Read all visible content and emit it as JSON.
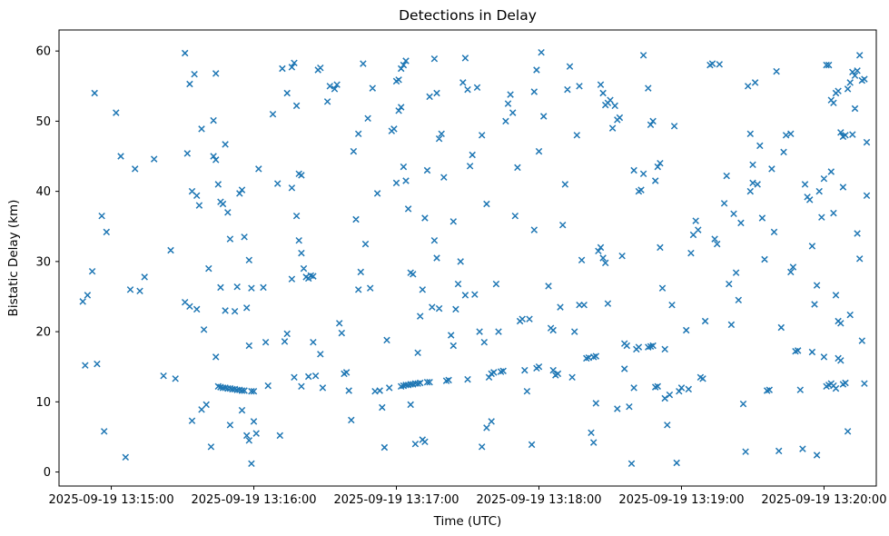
{
  "chart_data": {
    "type": "scatter",
    "title": "Detections in Delay",
    "xlabel": "Time (UTC)",
    "ylabel": "Bistatic Delay (km)",
    "marker": "x",
    "marker_color": "#1f77b4",
    "grid": false,
    "legend": "none",
    "x_encoding": "seconds relative to 2025-09-19 13:15:00 UTC",
    "xlim": [
      -22,
      322
    ],
    "ylim": [
      -2,
      63
    ],
    "x_tick_values": [
      0,
      60,
      120,
      180,
      240,
      300
    ],
    "x_tick_labels": [
      "2025-09-19 13:15:00",
      "2025-09-19 13:16:00",
      "2025-09-19 13:17:00",
      "2025-09-19 13:18:00",
      "2025-09-19 13:19:00",
      "2025-09-19 13:20:00"
    ],
    "y_tick_values": [
      0,
      10,
      20,
      30,
      40,
      50,
      60
    ],
    "y_tick_labels": [
      "0",
      "10",
      "20",
      "30",
      "40",
      "50",
      "60"
    ],
    "points": [
      [
        -12,
        24.3
      ],
      [
        -10,
        25.2
      ],
      [
        -8,
        28.6
      ],
      [
        -11,
        15.2
      ],
      [
        -6,
        15.4
      ],
      [
        -7,
        54.0
      ],
      [
        -4,
        36.5
      ],
      [
        -2,
        34.2
      ],
      [
        -3,
        5.8
      ],
      [
        2,
        51.2
      ],
      [
        4,
        45.0
      ],
      [
        6,
        2.1
      ],
      [
        8,
        26.0
      ],
      [
        12,
        25.8
      ],
      [
        14,
        27.8
      ],
      [
        10,
        43.2
      ],
      [
        18,
        44.6
      ],
      [
        22,
        13.7
      ],
      [
        27,
        13.3
      ],
      [
        25,
        31.6
      ],
      [
        31,
        59.7
      ],
      [
        33,
        55.3
      ],
      [
        35,
        56.7
      ],
      [
        32,
        45.4
      ],
      [
        34,
        40.0
      ],
      [
        36,
        39.4
      ],
      [
        37,
        38.0
      ],
      [
        38,
        48.9
      ],
      [
        31,
        24.2
      ],
      [
        33,
        23.6
      ],
      [
        36,
        23.2
      ],
      [
        39,
        20.3
      ],
      [
        34,
        7.3
      ],
      [
        38,
        8.9
      ],
      [
        40,
        9.6
      ],
      [
        42,
        3.6
      ],
      [
        41,
        29.0
      ],
      [
        43,
        50.1
      ],
      [
        44,
        56.8
      ],
      [
        43,
        45.0
      ],
      [
        44,
        44.5
      ],
      [
        45,
        41.0
      ],
      [
        46,
        38.5
      ],
      [
        47,
        38.2
      ],
      [
        48,
        46.7
      ],
      [
        49,
        37.0
      ],
      [
        50,
        33.2
      ],
      [
        46,
        26.3
      ],
      [
        48,
        23.0
      ],
      [
        44,
        16.4
      ],
      [
        45,
        12.2
      ],
      [
        46,
        12.1
      ],
      [
        47,
        12.0
      ],
      [
        48,
        12.0
      ],
      [
        49,
        11.9
      ],
      [
        50,
        11.9
      ],
      [
        51,
        11.8
      ],
      [
        52,
        11.8
      ],
      [
        53,
        11.7
      ],
      [
        54,
        11.7
      ],
      [
        55,
        11.6
      ],
      [
        56,
        11.6
      ],
      [
        50,
        6.7
      ],
      [
        52,
        22.9
      ],
      [
        53,
        26.4
      ],
      [
        54,
        39.7
      ],
      [
        55,
        40.2
      ],
      [
        56,
        33.5
      ],
      [
        57,
        23.4
      ],
      [
        58,
        18.0
      ],
      [
        55,
        8.8
      ],
      [
        57,
        5.2
      ],
      [
        58,
        4.5
      ],
      [
        59,
        1.2
      ],
      [
        59,
        11.5
      ],
      [
        60,
        11.5
      ],
      [
        58,
        30.2
      ],
      [
        59,
        26.2
      ],
      [
        60,
        7.2
      ],
      [
        61,
        5.5
      ],
      [
        62,
        43.2
      ],
      [
        64,
        26.3
      ],
      [
        65,
        18.5
      ],
      [
        68,
        51.0
      ],
      [
        70,
        41.1
      ],
      [
        72,
        57.5
      ],
      [
        74,
        54.0
      ],
      [
        66,
        12.3
      ],
      [
        73,
        18.6
      ],
      [
        74,
        19.7
      ],
      [
        71,
        5.2
      ],
      [
        76,
        57.7
      ],
      [
        77,
        58.3
      ],
      [
        78,
        52.2
      ],
      [
        79,
        42.5
      ],
      [
        80,
        42.3
      ],
      [
        76,
        40.5
      ],
      [
        78,
        36.5
      ],
      [
        79,
        33.0
      ],
      [
        80,
        31.2
      ],
      [
        81,
        29.0
      ],
      [
        82,
        27.8
      ],
      [
        76,
        27.5
      ],
      [
        83,
        27.6
      ],
      [
        84,
        28.0
      ],
      [
        85,
        27.9
      ],
      [
        77,
        13.5
      ],
      [
        80,
        12.2
      ],
      [
        83,
        13.6
      ],
      [
        86,
        13.7
      ],
      [
        87,
        57.3
      ],
      [
        88,
        57.6
      ],
      [
        85,
        18.5
      ],
      [
        88,
        16.8
      ],
      [
        89,
        12.0
      ],
      [
        91,
        52.8
      ],
      [
        92,
        55.0
      ],
      [
        94,
        54.6
      ],
      [
        95,
        55.2
      ],
      [
        96,
        21.2
      ],
      [
        97,
        19.8
      ],
      [
        98,
        14.0
      ],
      [
        99,
        14.2
      ],
      [
        100,
        11.6
      ],
      [
        101,
        7.4
      ],
      [
        103,
        36.0
      ],
      [
        104,
        26.0
      ],
      [
        105,
        28.5
      ],
      [
        102,
        45.7
      ],
      [
        104,
        48.2
      ],
      [
        106,
        58.2
      ],
      [
        108,
        50.4
      ],
      [
        110,
        54.7
      ],
      [
        112,
        39.7
      ],
      [
        107,
        32.5
      ],
      [
        109,
        26.2
      ],
      [
        111,
        11.5
      ],
      [
        113,
        11.6
      ],
      [
        114,
        9.2
      ],
      [
        115,
        3.5
      ],
      [
        116,
        18.8
      ],
      [
        117,
        12.0
      ],
      [
        118,
        48.6
      ],
      [
        119,
        48.9
      ],
      [
        120,
        55.7
      ],
      [
        120,
        41.2
      ],
      [
        121,
        55.9
      ],
      [
        122,
        57.5
      ],
      [
        123,
        58.0
      ],
      [
        124,
        58.6
      ],
      [
        121,
        51.5
      ],
      [
        122,
        52.0
      ],
      [
        123,
        43.5
      ],
      [
        124,
        41.5
      ],
      [
        125,
        37.5
      ],
      [
        126,
        28.4
      ],
      [
        127,
        28.2
      ],
      [
        122,
        12.2
      ],
      [
        123,
        12.3
      ],
      [
        124,
        12.4
      ],
      [
        125,
        12.4
      ],
      [
        126,
        12.5
      ],
      [
        127,
        12.5
      ],
      [
        128,
        12.6
      ],
      [
        129,
        12.6
      ],
      [
        130,
        12.7
      ],
      [
        126,
        9.6
      ],
      [
        128,
        4.0
      ],
      [
        130,
        22.2
      ],
      [
        131,
        26.0
      ],
      [
        132,
        36.2
      ],
      [
        133,
        43.0
      ],
      [
        134,
        53.5
      ],
      [
        129,
        17.0
      ],
      [
        131,
        4.6
      ],
      [
        132,
        4.3
      ],
      [
        133,
        12.8
      ],
      [
        134,
        12.8
      ],
      [
        136,
        58.9
      ],
      [
        137,
        54.0
      ],
      [
        138,
        47.5
      ],
      [
        139,
        48.2
      ],
      [
        140,
        42.0
      ],
      [
        136,
        33.0
      ],
      [
        137,
        30.5
      ],
      [
        135,
        23.5
      ],
      [
        138,
        23.3
      ],
      [
        141,
        13.0
      ],
      [
        142,
        13.1
      ],
      [
        143,
        19.5
      ],
      [
        144,
        18.0
      ],
      [
        145,
        23.2
      ],
      [
        146,
        26.8
      ],
      [
        147,
        30.0
      ],
      [
        148,
        55.5
      ],
      [
        149,
        59.0
      ],
      [
        150,
        54.5
      ],
      [
        144,
        35.7
      ],
      [
        149,
        25.2
      ],
      [
        150,
        13.2
      ],
      [
        151,
        43.6
      ],
      [
        152,
        45.2
      ],
      [
        154,
        54.8
      ],
      [
        156,
        48.0
      ],
      [
        158,
        38.2
      ],
      [
        153,
        25.3
      ],
      [
        155,
        20.0
      ],
      [
        157,
        18.5
      ],
      [
        159,
        13.5
      ],
      [
        160,
        14.0
      ],
      [
        161,
        14.2
      ],
      [
        156,
        3.6
      ],
      [
        158,
        6.3
      ],
      [
        160,
        7.2
      ],
      [
        162,
        26.8
      ],
      [
        163,
        20.0
      ],
      [
        164,
        14.3
      ],
      [
        165,
        14.4
      ],
      [
        166,
        50.0
      ],
      [
        167,
        52.5
      ],
      [
        168,
        53.8
      ],
      [
        169,
        51.2
      ],
      [
        170,
        36.5
      ],
      [
        171,
        43.4
      ],
      [
        172,
        21.5
      ],
      [
        173,
        21.8
      ],
      [
        174,
        14.5
      ],
      [
        175,
        11.5
      ],
      [
        176,
        21.8
      ],
      [
        178,
        34.5
      ],
      [
        179,
        14.8
      ],
      [
        180,
        15.0
      ],
      [
        177,
        3.9
      ],
      [
        178,
        54.2
      ],
      [
        179,
        57.3
      ],
      [
        180,
        45.7
      ],
      [
        181,
        59.8
      ],
      [
        182,
        50.7
      ],
      [
        184,
        26.5
      ],
      [
        185,
        20.5
      ],
      [
        186,
        14.5
      ],
      [
        187,
        13.8
      ],
      [
        188,
        14.0
      ],
      [
        189,
        23.5
      ],
      [
        190,
        35.2
      ],
      [
        191,
        41.0
      ],
      [
        192,
        54.5
      ],
      [
        193,
        57.8
      ],
      [
        186,
        20.2
      ],
      [
        194,
        13.5
      ],
      [
        196,
        48.0
      ],
      [
        197,
        55.0
      ],
      [
        198,
        30.2
      ],
      [
        199,
        23.8
      ],
      [
        200,
        16.2
      ],
      [
        201,
        16.3
      ],
      [
        202,
        5.6
      ],
      [
        203,
        4.2
      ],
      [
        204,
        9.8
      ],
      [
        205,
        31.5
      ],
      [
        206,
        32.0
      ],
      [
        207,
        30.5
      ],
      [
        208,
        29.8
      ],
      [
        209,
        24.0
      ],
      [
        195,
        20.0
      ],
      [
        197,
        23.8
      ],
      [
        206,
        55.2
      ],
      [
        207,
        54.0
      ],
      [
        208,
        52.3
      ],
      [
        209,
        52.6
      ],
      [
        210,
        53.0
      ],
      [
        203,
        16.4
      ],
      [
        204,
        16.5
      ],
      [
        211,
        49.0
      ],
      [
        212,
        52.2
      ],
      [
        213,
        50.2
      ],
      [
        214,
        50.5
      ],
      [
        215,
        30.8
      ],
      [
        216,
        18.3
      ],
      [
        217,
        18.0
      ],
      [
        218,
        9.3
      ],
      [
        219,
        1.2
      ],
      [
        220,
        12.0
      ],
      [
        221,
        17.5
      ],
      [
        222,
        17.8
      ],
      [
        223,
        40.2
      ],
      [
        224,
        42.5
      ],
      [
        213,
        9.0
      ],
      [
        216,
        14.7
      ],
      [
        224,
        59.4
      ],
      [
        220,
        43.0
      ],
      [
        222,
        40.0
      ],
      [
        226,
        54.7
      ],
      [
        227,
        49.5
      ],
      [
        228,
        50.0
      ],
      [
        229,
        41.5
      ],
      [
        230,
        43.5
      ],
      [
        231,
        32.0
      ],
      [
        232,
        26.2
      ],
      [
        226,
        17.8
      ],
      [
        227,
        17.9
      ],
      [
        228,
        18.0
      ],
      [
        229,
        12.1
      ],
      [
        230,
        12.2
      ],
      [
        233,
        10.5
      ],
      [
        234,
        6.7
      ],
      [
        235,
        11.0
      ],
      [
        236,
        23.8
      ],
      [
        237,
        49.3
      ],
      [
        238,
        1.3
      ],
      [
        239,
        11.5
      ],
      [
        240,
        12.0
      ],
      [
        233,
        17.5
      ],
      [
        231,
        44.0
      ],
      [
        242,
        20.2
      ],
      [
        244,
        31.2
      ],
      [
        245,
        33.8
      ],
      [
        246,
        35.8
      ],
      [
        247,
        34.5
      ],
      [
        248,
        13.5
      ],
      [
        249,
        13.3
      ],
      [
        250,
        21.5
      ],
      [
        252,
        58.0
      ],
      [
        253,
        58.2
      ],
      [
        254,
        33.2
      ],
      [
        255,
        32.5
      ],
      [
        243,
        11.8
      ],
      [
        256,
        58.1
      ],
      [
        258,
        38.3
      ],
      [
        259,
        42.2
      ],
      [
        260,
        26.8
      ],
      [
        261,
        21.0
      ],
      [
        263,
        28.4
      ],
      [
        264,
        24.5
      ],
      [
        265,
        35.5
      ],
      [
        266,
        9.7
      ],
      [
        267,
        2.9
      ],
      [
        268,
        55.0
      ],
      [
        269,
        48.2
      ],
      [
        270,
        43.8
      ],
      [
        262,
        36.8
      ],
      [
        269,
        40.0
      ],
      [
        270,
        41.2
      ],
      [
        271,
        55.5
      ],
      [
        272,
        41.0
      ],
      [
        273,
        46.5
      ],
      [
        274,
        36.2
      ],
      [
        275,
        30.3
      ],
      [
        276,
        11.6
      ],
      [
        277,
        11.7
      ],
      [
        278,
        43.2
      ],
      [
        279,
        34.2
      ],
      [
        280,
        57.1
      ],
      [
        282,
        20.6
      ],
      [
        283,
        45.6
      ],
      [
        284,
        48.0
      ],
      [
        281,
        3.0
      ],
      [
        286,
        28.5
      ],
      [
        287,
        29.2
      ],
      [
        288,
        17.2
      ],
      [
        289,
        17.3
      ],
      [
        290,
        11.7
      ],
      [
        291,
        3.3
      ],
      [
        292,
        41.0
      ],
      [
        293,
        39.2
      ],
      [
        294,
        38.8
      ],
      [
        295,
        32.2
      ],
      [
        296,
        23.9
      ],
      [
        297,
        26.6
      ],
      [
        286,
        48.2
      ],
      [
        295,
        17.1
      ],
      [
        297,
        2.4
      ],
      [
        298,
        40.0
      ],
      [
        299,
        36.3
      ],
      [
        300,
        41.8
      ],
      [
        301,
        58.0
      ],
      [
        302,
        58.0
      ],
      [
        303,
        53.0
      ],
      [
        304,
        52.6
      ],
      [
        305,
        54.0
      ],
      [
        306,
        54.3
      ],
      [
        307,
        48.4
      ],
      [
        308,
        47.8
      ],
      [
        309,
        48.0
      ],
      [
        310,
        54.6
      ],
      [
        311,
        55.5
      ],
      [
        312,
        57.0
      ],
      [
        303,
        42.8
      ],
      [
        305,
        25.2
      ],
      [
        306,
        21.5
      ],
      [
        307,
        21.2
      ],
      [
        301,
        12.2
      ],
      [
        302,
        12.4
      ],
      [
        303,
        12.6
      ],
      [
        304,
        12.3
      ],
      [
        305,
        11.9
      ],
      [
        306,
        16.2
      ],
      [
        307,
        15.9
      ],
      [
        308,
        12.5
      ],
      [
        309,
        12.7
      ],
      [
        310,
        5.8
      ],
      [
        304,
        36.9
      ],
      [
        308,
        40.6
      ],
      [
        311,
        22.4
      ],
      [
        312,
        48.1
      ],
      [
        300,
        16.4
      ],
      [
        313,
        56.5
      ],
      [
        314,
        57.2
      ],
      [
        315,
        59.4
      ],
      [
        316,
        55.8
      ],
      [
        317,
        56.0
      ],
      [
        313,
        51.8
      ],
      [
        314,
        34.0
      ],
      [
        315,
        30.4
      ],
      [
        316,
        18.7
      ],
      [
        317,
        12.6
      ],
      [
        318,
        47.0
      ],
      [
        318,
        39.4
      ]
    ]
  }
}
